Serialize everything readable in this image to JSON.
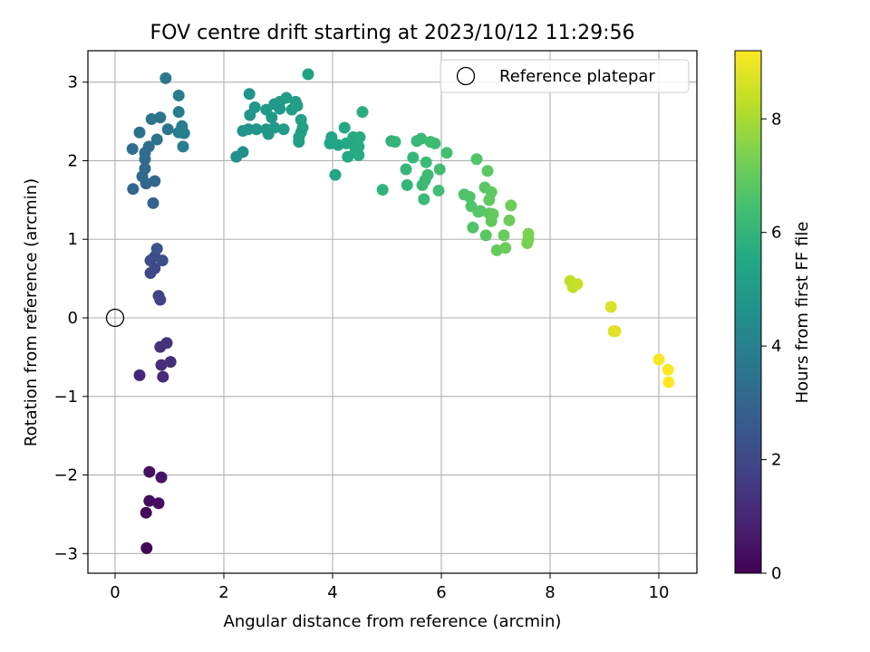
{
  "chart_data": {
    "type": "scatter",
    "title": "FOV centre drift starting at 2023/10/12 11:29:56",
    "xlabel": "Angular distance from reference (arcmin)",
    "ylabel": "Rotation from reference (arcmin)",
    "xlim": [
      -0.5,
      10.7
    ],
    "ylim": [
      -3.25,
      3.4
    ],
    "xticks": [
      0,
      2,
      4,
      6,
      8,
      10
    ],
    "xtick_labels": [
      "0",
      "2",
      "4",
      "6",
      "8",
      "10"
    ],
    "yticks": [
      -3,
      -2,
      -1,
      0,
      1,
      2,
      3
    ],
    "ytick_labels": [
      "−3",
      "−2",
      "−1",
      "0",
      "1",
      "2",
      "3"
    ],
    "grid": true,
    "colormap": "viridis",
    "colorbar": {
      "label": "Hours from first FF file",
      "range": [
        0,
        9.2
      ],
      "ticks": [
        0,
        2,
        4,
        6,
        8
      ],
      "tick_labels": [
        "0",
        "2",
        "4",
        "6",
        "8"
      ]
    },
    "legend": {
      "position": "top-right",
      "entries": [
        "Reference platepar"
      ]
    },
    "reference_point": {
      "x": 0,
      "y": 0
    },
    "points": [
      {
        "x": 0.58,
        "y": -2.93,
        "c": 0.1
      },
      {
        "x": 0.57,
        "y": -2.48,
        "c": 0.2
      },
      {
        "x": 0.63,
        "y": -2.33,
        "c": 0.3
      },
      {
        "x": 0.8,
        "y": -2.36,
        "c": 0.35
      },
      {
        "x": 0.63,
        "y": -1.96,
        "c": 0.4
      },
      {
        "x": 0.85,
        "y": -2.03,
        "c": 0.5
      },
      {
        "x": 0.45,
        "y": -0.73,
        "c": 1.0
      },
      {
        "x": 0.88,
        "y": -0.75,
        "c": 1.1
      },
      {
        "x": 0.85,
        "y": -0.6,
        "c": 1.15
      },
      {
        "x": 1.02,
        "y": -0.56,
        "c": 1.2
      },
      {
        "x": 0.83,
        "y": -0.37,
        "c": 1.3
      },
      {
        "x": 0.95,
        "y": -0.32,
        "c": 1.35
      },
      {
        "x": 0.83,
        "y": 0.23,
        "c": 1.8
      },
      {
        "x": 0.8,
        "y": 0.28,
        "c": 1.85
      },
      {
        "x": 0.65,
        "y": 0.57,
        "c": 2.0
      },
      {
        "x": 0.73,
        "y": 0.63,
        "c": 2.05
      },
      {
        "x": 0.65,
        "y": 0.73,
        "c": 2.1
      },
      {
        "x": 0.73,
        "y": 0.78,
        "c": 2.15
      },
      {
        "x": 0.87,
        "y": 0.73,
        "c": 2.2
      },
      {
        "x": 0.77,
        "y": 0.88,
        "c": 2.3
      },
      {
        "x": 0.7,
        "y": 1.46,
        "c": 2.9
      },
      {
        "x": 0.57,
        "y": 1.71,
        "c": 3.0
      },
      {
        "x": 0.73,
        "y": 1.74,
        "c": 3.05
      },
      {
        "x": 0.33,
        "y": 1.64,
        "c": 3.0
      },
      {
        "x": 0.5,
        "y": 1.8,
        "c": 3.1
      },
      {
        "x": 0.55,
        "y": 1.9,
        "c": 3.15
      },
      {
        "x": 0.55,
        "y": 2.02,
        "c": 3.2
      },
      {
        "x": 0.55,
        "y": 2.1,
        "c": 3.25
      },
      {
        "x": 0.62,
        "y": 2.18,
        "c": 3.3
      },
      {
        "x": 0.32,
        "y": 2.15,
        "c": 3.3
      },
      {
        "x": 0.45,
        "y": 2.36,
        "c": 3.4
      },
      {
        "x": 0.67,
        "y": 2.53,
        "c": 3.5
      },
      {
        "x": 0.77,
        "y": 2.27,
        "c": 3.5
      },
      {
        "x": 0.83,
        "y": 2.55,
        "c": 3.55
      },
      {
        "x": 0.97,
        "y": 2.4,
        "c": 3.6
      },
      {
        "x": 0.93,
        "y": 3.05,
        "c": 3.7
      },
      {
        "x": 1.17,
        "y": 2.83,
        "c": 3.8
      },
      {
        "x": 1.17,
        "y": 2.62,
        "c": 3.8
      },
      {
        "x": 1.17,
        "y": 2.36,
        "c": 3.85
      },
      {
        "x": 1.23,
        "y": 2.44,
        "c": 3.9
      },
      {
        "x": 1.27,
        "y": 2.35,
        "c": 3.9
      },
      {
        "x": 1.25,
        "y": 2.18,
        "c": 3.95
      },
      {
        "x": 2.23,
        "y": 2.05,
        "c": 4.6
      },
      {
        "x": 2.35,
        "y": 2.11,
        "c": 4.6
      },
      {
        "x": 2.35,
        "y": 2.38,
        "c": 4.65
      },
      {
        "x": 2.45,
        "y": 2.4,
        "c": 4.7
      },
      {
        "x": 2.48,
        "y": 2.58,
        "c": 4.7
      },
      {
        "x": 2.47,
        "y": 2.85,
        "c": 4.75
      },
      {
        "x": 2.57,
        "y": 2.68,
        "c": 4.8
      },
      {
        "x": 2.6,
        "y": 2.4,
        "c": 4.8
      },
      {
        "x": 2.78,
        "y": 2.4,
        "c": 4.85
      },
      {
        "x": 2.82,
        "y": 2.34,
        "c": 4.85
      },
      {
        "x": 2.78,
        "y": 2.65,
        "c": 4.9
      },
      {
        "x": 2.88,
        "y": 2.55,
        "c": 4.9
      },
      {
        "x": 2.93,
        "y": 2.72,
        "c": 4.95
      },
      {
        "x": 2.93,
        "y": 2.42,
        "c": 4.95
      },
      {
        "x": 3.03,
        "y": 2.66,
        "c": 5.0
      },
      {
        "x": 3.03,
        "y": 2.75,
        "c": 5.0
      },
      {
        "x": 3.1,
        "y": 2.4,
        "c": 5.05
      },
      {
        "x": 3.15,
        "y": 2.8,
        "c": 5.05
      },
      {
        "x": 3.25,
        "y": 2.65,
        "c": 5.1
      },
      {
        "x": 3.32,
        "y": 2.75,
        "c": 5.1
      },
      {
        "x": 3.35,
        "y": 2.7,
        "c": 5.15
      },
      {
        "x": 3.38,
        "y": 2.24,
        "c": 5.15
      },
      {
        "x": 3.38,
        "y": 2.3,
        "c": 5.15
      },
      {
        "x": 3.42,
        "y": 2.36,
        "c": 5.2
      },
      {
        "x": 3.42,
        "y": 2.52,
        "c": 5.2
      },
      {
        "x": 3.45,
        "y": 2.42,
        "c": 5.2
      },
      {
        "x": 3.55,
        "y": 3.1,
        "c": 5.25
      },
      {
        "x": 3.95,
        "y": 2.22,
        "c": 5.4
      },
      {
        "x": 3.98,
        "y": 2.3,
        "c": 5.4
      },
      {
        "x": 4.05,
        "y": 1.82,
        "c": 5.45
      },
      {
        "x": 4.1,
        "y": 2.2,
        "c": 5.45
      },
      {
        "x": 4.22,
        "y": 2.42,
        "c": 5.5
      },
      {
        "x": 4.25,
        "y": 2.22,
        "c": 5.5
      },
      {
        "x": 4.28,
        "y": 2.05,
        "c": 5.55
      },
      {
        "x": 4.35,
        "y": 2.22,
        "c": 5.55
      },
      {
        "x": 4.38,
        "y": 2.3,
        "c": 5.6
      },
      {
        "x": 4.42,
        "y": 2.15,
        "c": 5.6
      },
      {
        "x": 4.45,
        "y": 2.27,
        "c": 5.6
      },
      {
        "x": 4.48,
        "y": 2.07,
        "c": 5.65
      },
      {
        "x": 4.48,
        "y": 2.18,
        "c": 5.65
      },
      {
        "x": 4.5,
        "y": 2.3,
        "c": 5.65
      },
      {
        "x": 4.55,
        "y": 2.62,
        "c": 5.7
      },
      {
        "x": 4.92,
        "y": 1.63,
        "c": 5.9
      },
      {
        "x": 5.08,
        "y": 2.25,
        "c": 5.95
      },
      {
        "x": 5.15,
        "y": 2.24,
        "c": 6.0
      },
      {
        "x": 5.35,
        "y": 1.89,
        "c": 6.05
      },
      {
        "x": 5.37,
        "y": 1.69,
        "c": 6.05
      },
      {
        "x": 5.48,
        "y": 2.04,
        "c": 6.1
      },
      {
        "x": 5.55,
        "y": 2.25,
        "c": 6.15
      },
      {
        "x": 5.63,
        "y": 2.28,
        "c": 6.15
      },
      {
        "x": 5.65,
        "y": 1.69,
        "c": 6.2
      },
      {
        "x": 5.68,
        "y": 1.51,
        "c": 6.2
      },
      {
        "x": 5.7,
        "y": 1.75,
        "c": 6.2
      },
      {
        "x": 5.72,
        "y": 1.98,
        "c": 6.25
      },
      {
        "x": 5.75,
        "y": 1.82,
        "c": 6.25
      },
      {
        "x": 5.8,
        "y": 2.24,
        "c": 6.3
      },
      {
        "x": 5.88,
        "y": 2.22,
        "c": 6.3
      },
      {
        "x": 5.95,
        "y": 1.62,
        "c": 6.35
      },
      {
        "x": 5.97,
        "y": 1.89,
        "c": 6.35
      },
      {
        "x": 6.1,
        "y": 2.1,
        "c": 6.4
      },
      {
        "x": 6.42,
        "y": 1.57,
        "c": 6.6
      },
      {
        "x": 6.52,
        "y": 1.54,
        "c": 6.65
      },
      {
        "x": 6.55,
        "y": 1.42,
        "c": 6.65
      },
      {
        "x": 6.58,
        "y": 1.15,
        "c": 6.7
      },
      {
        "x": 6.65,
        "y": 2.02,
        "c": 6.7
      },
      {
        "x": 6.68,
        "y": 1.35,
        "c": 6.75
      },
      {
        "x": 6.72,
        "y": 1.36,
        "c": 6.75
      },
      {
        "x": 6.8,
        "y": 1.66,
        "c": 6.8
      },
      {
        "x": 6.82,
        "y": 1.05,
        "c": 6.8
      },
      {
        "x": 6.85,
        "y": 1.87,
        "c": 6.85
      },
      {
        "x": 6.88,
        "y": 1.33,
        "c": 6.85
      },
      {
        "x": 6.88,
        "y": 1.5,
        "c": 6.9
      },
      {
        "x": 6.92,
        "y": 1.23,
        "c": 6.9
      },
      {
        "x": 6.92,
        "y": 1.6,
        "c": 6.9
      },
      {
        "x": 6.95,
        "y": 1.32,
        "c": 6.95
      },
      {
        "x": 7.02,
        "y": 0.86,
        "c": 7.0
      },
      {
        "x": 7.15,
        "y": 1.05,
        "c": 7.05
      },
      {
        "x": 7.18,
        "y": 0.89,
        "c": 7.1
      },
      {
        "x": 7.25,
        "y": 1.24,
        "c": 7.15
      },
      {
        "x": 7.28,
        "y": 1.43,
        "c": 7.15
      },
      {
        "x": 7.58,
        "y": 0.95,
        "c": 7.3
      },
      {
        "x": 7.6,
        "y": 1.0,
        "c": 7.3
      },
      {
        "x": 7.6,
        "y": 1.07,
        "c": 7.35
      },
      {
        "x": 8.37,
        "y": 0.47,
        "c": 8.3
      },
      {
        "x": 8.42,
        "y": 0.39,
        "c": 8.35
      },
      {
        "x": 8.5,
        "y": 0.43,
        "c": 8.4
      },
      {
        "x": 9.12,
        "y": 0.14,
        "c": 8.7
      },
      {
        "x": 9.17,
        "y": -0.17,
        "c": 8.75
      },
      {
        "x": 9.2,
        "y": -0.17,
        "c": 8.8
      },
      {
        "x": 10.0,
        "y": -0.53,
        "c": 9.1
      },
      {
        "x": 10.17,
        "y": -0.66,
        "c": 9.15
      },
      {
        "x": 10.18,
        "y": -0.82,
        "c": 9.2
      }
    ]
  }
}
